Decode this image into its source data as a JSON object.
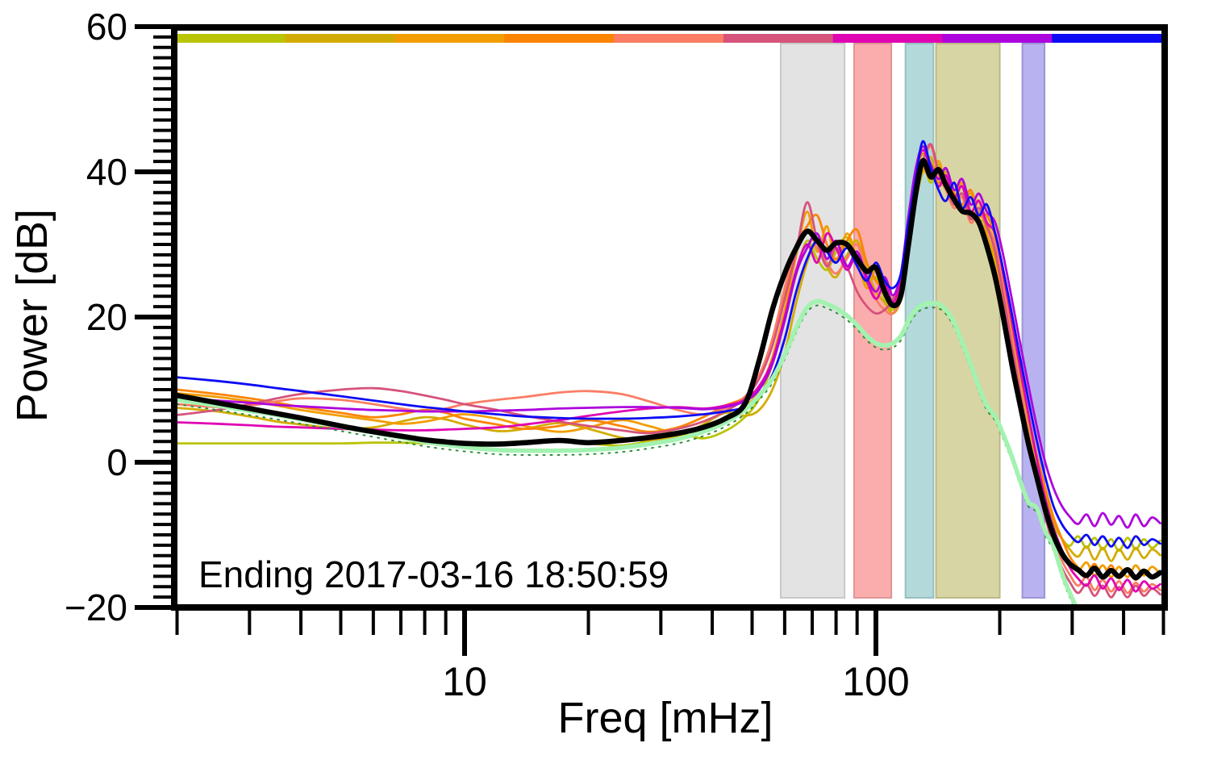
{
  "figure": {
    "annotation": "Ending 2017-03-16 18:50:59",
    "xlabel": "Freq [mHz]",
    "ylabel": "Power [dB]",
    "x_tick_labels": [
      "10",
      "100"
    ],
    "y_tick_labels": [
      "60",
      "40",
      "20",
      "0",
      "−20"
    ]
  },
  "chart_data": {
    "type": "line",
    "title": "Ending 2017-03-16 18:50:59",
    "xlabel": "Freq [mHz]",
    "ylabel": "Power [dB]",
    "xscale": "log",
    "xlim": [
      2,
      500
    ],
    "ylim": [
      -20,
      60
    ],
    "grid": false,
    "x_major_ticks": [
      10,
      100
    ],
    "x_minor_ticks": [
      2,
      3,
      4,
      5,
      6,
      7,
      8,
      9,
      20,
      30,
      40,
      50,
      60,
      70,
      80,
      90,
      200,
      300,
      400,
      500
    ],
    "y_major_ticks": [
      60,
      40,
      20,
      0,
      -20
    ],
    "y_minor_divisions_per_major": 14,
    "colorbar": {
      "description": "time-order colorbar, one segment per hourly spectrum",
      "colors": [
        "#b9c406",
        "#d2ac04",
        "#f29d01",
        "#fb8405",
        "#fa7d64",
        "#d6537b",
        "#e005b2",
        "#ad05dd",
        "#0d0cf5"
      ]
    },
    "bands": [
      {
        "name": "band-gray",
        "f1_mhz": 58.7,
        "f2_mhz": 83.9,
        "fill": "#e3e3e3",
        "edge": "#c8c8c8"
      },
      {
        "name": "band-pink",
        "f1_mhz": 88.5,
        "f2_mhz": 109.0,
        "fill": "#fbadad",
        "edge": "#e09595"
      },
      {
        "name": "band-teal",
        "f1_mhz": 118.0,
        "f2_mhz": 138.0,
        "fill": "#b4d9da",
        "edge": "#96bfc1"
      },
      {
        "name": "band-olive",
        "f1_mhz": 140.0,
        "f2_mhz": 200.0,
        "fill": "#d8d5a4",
        "edge": "#bdb985"
      },
      {
        "name": "band-lavender",
        "f1_mhz": 227.0,
        "f2_mhz": 257.0,
        "fill": "#b9b2f0",
        "edge": "#9d95d6"
      }
    ],
    "x_mhz": [
      2,
      2.5,
      3,
      3.5,
      4,
      5,
      6,
      7,
      8,
      9,
      10,
      12,
      14,
      17,
      20,
      24,
      28,
      33,
      38,
      43,
      48,
      52,
      56,
      60,
      64,
      68,
      72,
      76,
      80,
      85,
      90,
      95,
      100,
      105,
      110,
      115,
      120,
      125,
      130,
      136,
      142,
      148,
      155,
      162,
      170,
      178,
      186,
      195,
      204,
      214,
      224,
      235,
      246,
      258,
      270,
      283,
      296,
      310,
      325,
      340,
      356,
      373,
      390,
      409,
      428,
      448,
      469,
      491
    ],
    "series": [
      {
        "name": "hour-1",
        "color": "#b9c406",
        "width": 2.8,
        "y": [
          2.6,
          2.6,
          2.6,
          2.6,
          2.6,
          2.6,
          2.7,
          2.7,
          2.6,
          2.6,
          2.6,
          2.7,
          2.9,
          3.1,
          2.6,
          2.3,
          2.9,
          3.9,
          3.3,
          4.3,
          6.2,
          8.8,
          13.5,
          19.5,
          26.0,
          30.5,
          28.0,
          26.5,
          29.0,
          31.0,
          27.5,
          24.5,
          25.5,
          22.5,
          21.0,
          23.5,
          31.0,
          38.0,
          41.0,
          38.5,
          41.0,
          37.5,
          36.0,
          38.0,
          34.0,
          36.0,
          31.0,
          27.0,
          21.5,
          15.0,
          9.5,
          3.5,
          -1.5,
          -5.5,
          -8.5,
          -10.5,
          -11.5,
          -10.2,
          -11.8,
          -10.4,
          -12.0,
          -10.6,
          -12.2,
          -10.4,
          -12.0,
          -10.6,
          -11.8,
          -10.8
        ]
      },
      {
        "name": "hour-2",
        "color": "#d2ac04",
        "width": 2.8,
        "y": [
          7.5,
          7.0,
          6.3,
          5.6,
          5.2,
          4.6,
          4.8,
          5.6,
          6.2,
          5.9,
          5.2,
          4.3,
          4.6,
          5.4,
          4.6,
          3.4,
          3.0,
          3.6,
          5.2,
          6.8,
          6.4,
          7.2,
          10.0,
          15.0,
          22.0,
          27.5,
          30.5,
          27.0,
          25.5,
          28.5,
          30.5,
          26.5,
          23.5,
          22.0,
          20.5,
          22.5,
          29.0,
          36.0,
          40.0,
          42.0,
          38.0,
          40.0,
          36.5,
          35.0,
          37.0,
          33.5,
          33.0,
          29.5,
          24.0,
          17.5,
          11.5,
          5.5,
          0.0,
          -4.5,
          -8.0,
          -10.5,
          -12.0,
          -13.0,
          -11.6,
          -13.4,
          -11.8,
          -13.6,
          -12.0,
          -13.4,
          -11.8,
          -13.2,
          -12.0,
          -12.8
        ]
      },
      {
        "name": "hour-3",
        "color": "#f29d01",
        "width": 2.8,
        "y": [
          9.5,
          9.0,
          8.4,
          7.8,
          7.2,
          6.4,
          5.8,
          5.3,
          5.6,
          6.2,
          6.6,
          6.0,
          5.0,
          4.2,
          4.8,
          5.8,
          5.0,
          4.0,
          4.6,
          6.0,
          7.5,
          10.0,
          14.5,
          21.0,
          28.5,
          34.5,
          29.0,
          32.5,
          27.5,
          31.5,
          28.0,
          24.0,
          26.5,
          23.0,
          21.5,
          24.0,
          32.0,
          38.5,
          40.5,
          39.0,
          41.5,
          38.0,
          36.5,
          38.5,
          34.5,
          36.0,
          31.5,
          28.0,
          22.0,
          15.5,
          9.5,
          3.5,
          -2.0,
          -6.5,
          -10.0,
          -12.5,
          -14.0,
          -15.0,
          -13.8,
          -15.6,
          -14.2,
          -15.8,
          -14.4,
          -15.8,
          -14.2,
          -15.6,
          -14.4,
          -15.4
        ]
      },
      {
        "name": "hour-4",
        "color": "#fb8405",
        "width": 2.8,
        "y": [
          10.0,
          9.4,
          8.8,
          8.2,
          7.6,
          6.8,
          6.2,
          6.6,
          7.2,
          6.8,
          6.0,
          5.2,
          4.6,
          5.0,
          5.8,
          5.0,
          4.2,
          4.8,
          6.2,
          7.8,
          9.0,
          12.0,
          16.5,
          23.0,
          29.5,
          32.5,
          34.0,
          30.0,
          28.0,
          30.5,
          32.0,
          27.5,
          25.0,
          23.5,
          22.0,
          25.0,
          33.0,
          39.5,
          42.5,
          40.0,
          38.5,
          40.5,
          37.0,
          35.5,
          37.5,
          34.0,
          34.0,
          31.0,
          25.5,
          19.0,
          13.0,
          6.5,
          1.0,
          -3.5,
          -7.5,
          -10.5,
          -13.0,
          -14.5,
          -15.5,
          -14.0,
          -15.8,
          -14.2,
          -16.0,
          -14.6,
          -16.2,
          -14.8,
          -16.0,
          -15.2
        ]
      },
      {
        "name": "hour-5",
        "color": "#fa7d64",
        "width": 2.8,
        "y": [
          8.0,
          7.6,
          7.8,
          8.4,
          8.8,
          8.6,
          8.0,
          7.4,
          7.0,
          7.4,
          8.0,
          8.6,
          9.0,
          9.6,
          9.8,
          9.4,
          8.4,
          7.2,
          6.6,
          7.4,
          9.0,
          12.0,
          17.0,
          24.0,
          30.0,
          32.0,
          29.5,
          27.5,
          26.0,
          28.0,
          30.0,
          26.0,
          22.5,
          21.0,
          20.5,
          23.0,
          31.0,
          37.5,
          41.0,
          43.5,
          39.5,
          37.5,
          35.0,
          36.5,
          33.0,
          34.5,
          32.5,
          30.0,
          24.0,
          17.0,
          10.5,
          4.0,
          -1.5,
          -6.5,
          -10.5,
          -13.5,
          -15.5,
          -17.0,
          -15.8,
          -17.6,
          -16.2,
          -17.8,
          -16.4,
          -18.0,
          -16.6,
          -17.8,
          -16.8,
          -17.6
        ]
      },
      {
        "name": "hour-6",
        "color": "#d6537b",
        "width": 2.8,
        "y": [
          6.5,
          7.2,
          8.0,
          8.8,
          9.4,
          10.0,
          10.2,
          9.8,
          9.2,
          8.6,
          8.0,
          7.2,
          6.4,
          5.6,
          5.0,
          4.4,
          4.0,
          4.6,
          5.6,
          7.0,
          8.8,
          11.5,
          16.0,
          22.5,
          29.0,
          35.8,
          30.5,
          27.0,
          29.5,
          27.0,
          23.5,
          21.5,
          20.5,
          21.0,
          22.5,
          26.0,
          33.0,
          38.0,
          41.5,
          43.8,
          40.0,
          38.0,
          35.5,
          37.0,
          33.5,
          35.0,
          32.5,
          29.0,
          23.0,
          16.0,
          9.5,
          3.0,
          -2.5,
          -7.5,
          -11.5,
          -14.5,
          -16.5,
          -18.0,
          -16.8,
          -18.4,
          -17.0,
          -18.6,
          -17.2,
          -18.6,
          -17.0,
          -18.4,
          -17.4,
          -18.2
        ]
      },
      {
        "name": "hour-7",
        "color": "#e005b2",
        "width": 2.8,
        "y": [
          5.5,
          5.3,
          5.1,
          4.9,
          4.8,
          4.6,
          4.5,
          4.4,
          4.4,
          4.5,
          4.6,
          4.8,
          5.2,
          5.8,
          6.4,
          7.0,
          7.4,
          7.6,
          7.4,
          7.8,
          8.6,
          10.5,
          14.0,
          20.0,
          26.5,
          30.0,
          27.5,
          31.5,
          29.5,
          26.5,
          28.5,
          25.0,
          22.5,
          24.5,
          22.0,
          25.5,
          33.5,
          40.0,
          43.0,
          40.5,
          38.0,
          39.5,
          36.5,
          38.0,
          34.5,
          36.0,
          33.0,
          31.5,
          26.0,
          19.5,
          13.0,
          6.5,
          0.5,
          -5.0,
          -9.0,
          -12.0,
          -14.5,
          -16.0,
          -17.0,
          -15.6,
          -17.4,
          -16.0,
          -17.6,
          -16.2,
          -17.8,
          -16.4,
          -17.4,
          -16.8
        ]
      },
      {
        "name": "hour-8",
        "color": "#ad05dd",
        "width": 2.8,
        "y": [
          8.8,
          8.5,
          8.2,
          7.9,
          7.7,
          7.4,
          7.2,
          7.1,
          7.0,
          7.0,
          7.0,
          7.1,
          7.2,
          7.4,
          7.5,
          7.6,
          7.6,
          7.5,
          7.3,
          7.6,
          8.4,
          10.0,
          13.5,
          19.5,
          26.0,
          29.5,
          31.5,
          28.0,
          30.5,
          27.0,
          29.0,
          25.5,
          23.5,
          25.5,
          23.0,
          26.0,
          34.0,
          40.5,
          43.5,
          41.0,
          39.0,
          40.5,
          37.5,
          39.0,
          35.5,
          37.0,
          34.5,
          33.0,
          28.5,
          22.5,
          16.5,
          10.5,
          5.0,
          0.0,
          -3.5,
          -6.0,
          -7.5,
          -8.5,
          -7.2,
          -8.8,
          -7.0,
          -8.6,
          -7.4,
          -9.0,
          -7.2,
          -8.8,
          -7.6,
          -8.4
        ]
      },
      {
        "name": "hour-9",
        "color": "#0d0cf5",
        "width": 2.8,
        "y": [
          11.7,
          11.2,
          10.7,
          10.2,
          9.8,
          9.1,
          8.5,
          8.0,
          7.6,
          7.3,
          7.0,
          6.6,
          6.3,
          6.1,
          6.0,
          6.0,
          6.1,
          6.3,
          6.6,
          7.0,
          7.6,
          9.0,
          12.0,
          17.0,
          23.5,
          28.0,
          30.5,
          29.0,
          27.5,
          29.5,
          27.0,
          25.0,
          27.5,
          25.0,
          24.0,
          26.0,
          33.0,
          39.0,
          44.2,
          40.5,
          37.5,
          36.0,
          38.5,
          35.0,
          36.5,
          34.0,
          35.5,
          31.5,
          26.5,
          20.5,
          14.5,
          8.5,
          3.0,
          -2.0,
          -6.0,
          -8.5,
          -10.0,
          -11.0,
          -10.0,
          -11.4,
          -10.2,
          -11.6,
          -10.4,
          -11.8,
          -10.2,
          -11.4,
          -10.6,
          -11.2
        ]
      },
      {
        "name": "model-dotted",
        "color": "#2f8f3a",
        "width": 2,
        "dash": "2 7",
        "offset_from": "model",
        "offset_db": -0.6
      },
      {
        "name": "model",
        "color": "#a2f2b0",
        "width": 5.5,
        "y": [
          8.6,
          7.8,
          7.1,
          6.5,
          5.9,
          4.9,
          4.1,
          3.4,
          2.8,
          2.4,
          2.1,
          1.7,
          1.6,
          1.6,
          1.7,
          2.0,
          2.5,
          3.2,
          4.2,
          5.5,
          7.2,
          9.2,
          11.5,
          14.8,
          18.5,
          21.3,
          22.2,
          21.8,
          21.2,
          20.2,
          18.9,
          17.4,
          16.4,
          16.1,
          16.4,
          17.4,
          19.5,
          21.0,
          21.7,
          21.9,
          21.8,
          21.0,
          19.2,
          16.5,
          13.5,
          10.3,
          7.8,
          6.3,
          3.8,
          0.8,
          -2.5,
          -5.5,
          -6.3,
          -9.5,
          -11.5,
          -15.2,
          -18.0,
          -20.5,
          -23.0,
          null,
          null,
          null,
          null,
          null,
          null,
          null,
          null,
          null
        ]
      },
      {
        "name": "mean",
        "color": "#000000",
        "width": 6.5,
        "y": [
          9.2,
          8.2,
          7.4,
          6.7,
          6.1,
          5.0,
          4.2,
          3.6,
          3.1,
          2.8,
          2.6,
          2.5,
          2.7,
          3.0,
          2.7,
          3.0,
          3.4,
          4.0,
          4.8,
          6.0,
          8.0,
          14.0,
          21.0,
          26.0,
          29.5,
          31.8,
          30.5,
          29.2,
          30.2,
          30.0,
          28.0,
          26.3,
          26.8,
          23.5,
          21.6,
          23.0,
          30.0,
          37.0,
          41.5,
          39.3,
          40.3,
          38.2,
          36.2,
          34.6,
          34.3,
          33.0,
          29.8,
          25.5,
          20.0,
          13.5,
          8.0,
          2.5,
          -2.0,
          -6.5,
          -10.0,
          -12.5,
          -14.0,
          -14.8,
          -15.6,
          -14.6,
          -15.8,
          -14.9,
          -15.7,
          -14.8,
          -15.9,
          -15.0,
          -15.8,
          -15.2
        ]
      }
    ]
  }
}
